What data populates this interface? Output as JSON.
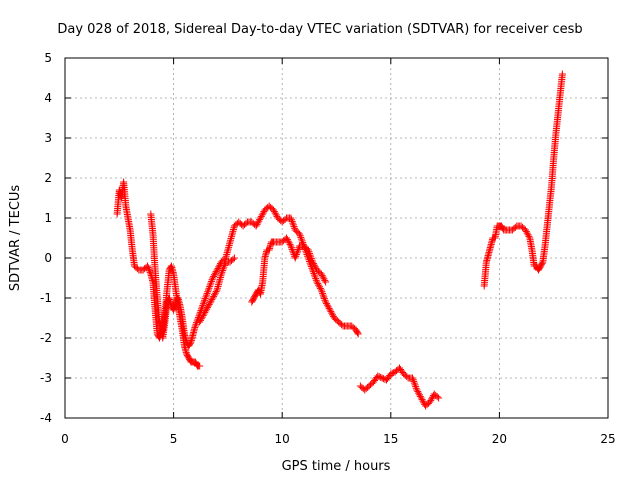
{
  "chart_data": {
    "type": "scatter",
    "title": "Day 028 of 2018, Sidereal Day-to-day VTEC variation (SDTVAR) for receiver cesb",
    "xlabel": "GPS time / hours",
    "ylabel": "SDTVAR / TECUs",
    "xlim": [
      0,
      25
    ],
    "ylim": [
      -4,
      5
    ],
    "xticks": [
      "0",
      "5",
      "10",
      "15",
      "20",
      "25"
    ],
    "yticks": [
      "-4",
      "-3",
      "-2",
      "-1",
      "0",
      "1",
      "2",
      "3",
      "4",
      "5"
    ],
    "grid": true,
    "marker": "+",
    "color": "#ff0000",
    "segments": [
      {
        "x": [
          2.4,
          2.5,
          2.6,
          2.7,
          2.8,
          2.9,
          3.0,
          3.1,
          3.2,
          3.4,
          3.6,
          3.8,
          3.95,
          4.05,
          4.15,
          4.25,
          4.35,
          4.5,
          4.6,
          4.7,
          4.8,
          4.9,
          5.0,
          5.1,
          5.2,
          5.3,
          5.4,
          5.5,
          5.6,
          5.7,
          5.8,
          5.9,
          6.0,
          6.1,
          6.2
        ],
        "y": [
          1.1,
          1.7,
          1.5,
          1.9,
          1.3,
          1.0,
          0.7,
          0.2,
          -0.2,
          -0.3,
          -0.3,
          -0.2,
          -0.4,
          -0.6,
          -1.3,
          -1.9,
          -2.0,
          -1.8,
          -1.4,
          -0.8,
          -0.3,
          -0.2,
          -0.4,
          -0.8,
          -1.2,
          -1.5,
          -1.8,
          -2.2,
          -2.4,
          -2.5,
          -2.6,
          -2.6,
          -2.6,
          -2.7,
          -2.7
        ]
      },
      {
        "x": [
          3.95,
          4.05,
          4.15,
          4.25,
          4.35,
          4.5,
          4.6,
          4.7,
          4.8,
          4.9,
          5.0,
          5.1,
          5.2,
          5.3,
          5.4,
          5.5,
          5.6,
          5.7,
          5.8,
          5.9,
          6.0,
          6.2,
          6.4,
          6.6,
          6.8,
          7.0,
          7.2,
          7.4,
          7.6,
          7.8,
          8.0,
          8.2,
          8.4,
          8.6,
          8.8,
          9.0,
          9.2,
          9.4,
          9.6,
          9.8,
          10.0,
          10.2,
          10.4,
          10.6,
          10.8,
          11.0,
          11.2,
          11.4,
          11.6,
          11.8,
          12.0,
          12.2,
          12.4,
          12.6,
          12.8,
          13.0,
          13.2,
          13.4,
          13.5
        ],
        "y": [
          1.1,
          0.6,
          -0.3,
          -1.0,
          -1.6,
          -2.0,
          -1.6,
          -1.1,
          -1.0,
          -1.2,
          -1.3,
          -1.1,
          -1.0,
          -1.2,
          -1.5,
          -1.9,
          -2.1,
          -2.2,
          -2.1,
          -1.9,
          -1.7,
          -1.4,
          -1.1,
          -0.8,
          -0.5,
          -0.3,
          -0.1,
          0.0,
          0.4,
          0.8,
          0.9,
          0.8,
          0.9,
          0.9,
          0.8,
          1.0,
          1.2,
          1.3,
          1.2,
          1.0,
          0.9,
          1.0,
          1.0,
          0.7,
          0.6,
          0.3,
          0.0,
          -0.3,
          -0.6,
          -0.8,
          -1.1,
          -1.3,
          -1.5,
          -1.6,
          -1.7,
          -1.7,
          -1.7,
          -1.8,
          -1.9
        ]
      },
      {
        "x": [
          8.6,
          8.7,
          8.8,
          8.9,
          9.0,
          9.1,
          9.2,
          9.3,
          9.4,
          9.5,
          9.6,
          9.8,
          10.0,
          10.2,
          10.4,
          10.6,
          10.8,
          11.0,
          11.2,
          11.4,
          11.6,
          11.8,
          12.0
        ],
        "y": [
          -1.1,
          -1.0,
          -0.9,
          -0.8,
          -0.9,
          -0.6,
          0.0,
          0.2,
          0.2,
          0.4,
          0.4,
          0.4,
          0.4,
          0.5,
          0.3,
          0.0,
          0.3,
          0.3,
          0.2,
          -0.1,
          -0.3,
          -0.4,
          -0.6
        ]
      },
      {
        "x": [
          6.2,
          6.4,
          6.6,
          6.8,
          7.0,
          7.2,
          7.4,
          7.6,
          7.8
        ],
        "y": [
          -1.6,
          -1.4,
          -1.2,
          -1.0,
          -0.8,
          -0.4,
          -0.1,
          -0.1,
          0.0
        ]
      },
      {
        "x": [
          13.6,
          13.8,
          14.0,
          14.2,
          14.4,
          14.6,
          14.8,
          15.0,
          15.2,
          15.4,
          15.6,
          15.8,
          16.0,
          16.2,
          16.4,
          16.6,
          16.8,
          17.0,
          17.2
        ],
        "y": [
          -3.2,
          -3.3,
          -3.2,
          -3.1,
          -2.95,
          -3.0,
          -3.05,
          -2.9,
          -2.85,
          -2.75,
          -2.9,
          -3.0,
          -3.0,
          -3.3,
          -3.5,
          -3.7,
          -3.6,
          -3.4,
          -3.5
        ]
      },
      {
        "x": [
          19.3,
          19.4,
          19.5,
          19.6,
          19.7,
          19.8,
          19.9,
          20.0,
          20.1,
          20.2,
          20.4,
          20.6,
          20.8,
          21.0,
          21.2,
          21.4,
          21.5,
          21.6,
          21.7,
          21.8,
          21.9,
          22.0,
          22.1,
          22.2,
          22.3,
          22.4,
          22.5,
          22.6,
          22.7,
          22.8,
          22.9
        ],
        "y": [
          -0.7,
          -0.1,
          0.1,
          0.3,
          0.5,
          0.5,
          0.8,
          0.8,
          0.8,
          0.7,
          0.7,
          0.7,
          0.8,
          0.8,
          0.7,
          0.5,
          0.2,
          -0.2,
          -0.2,
          -0.3,
          -0.2,
          -0.1,
          0.3,
          0.8,
          1.3,
          1.8,
          2.5,
          3.1,
          3.6,
          4.1,
          4.6
        ]
      }
    ]
  }
}
